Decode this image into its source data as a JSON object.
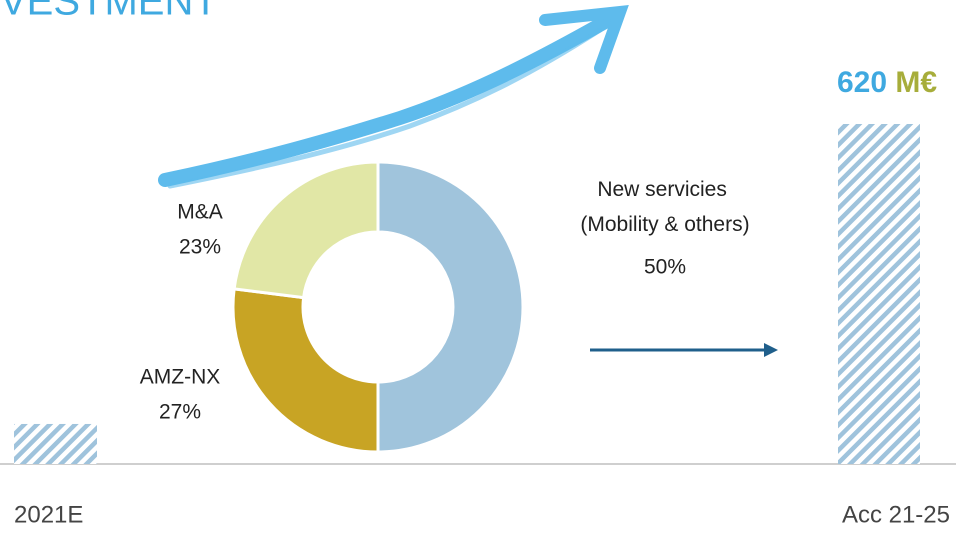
{
  "chart_data": [
    {
      "type": "bar",
      "title": "VESTMENT",
      "categories": [
        "2021E",
        "Acc 21-25"
      ],
      "values": [
        73,
        620
      ],
      "value_labels": [
        null,
        "620 M€"
      ],
      "color": "#9fc3dc"
    },
    {
      "type": "donut",
      "categories": [
        "New servicies (Mobility & others)",
        "AMZ-NX",
        "M&A"
      ],
      "values": [
        50,
        27,
        23
      ],
      "value_labels": [
        "50%",
        "27%",
        "23%"
      ],
      "colors": [
        "#a0c4dc",
        "#c8a424",
        "#e1e7a6"
      ]
    }
  ]
}
